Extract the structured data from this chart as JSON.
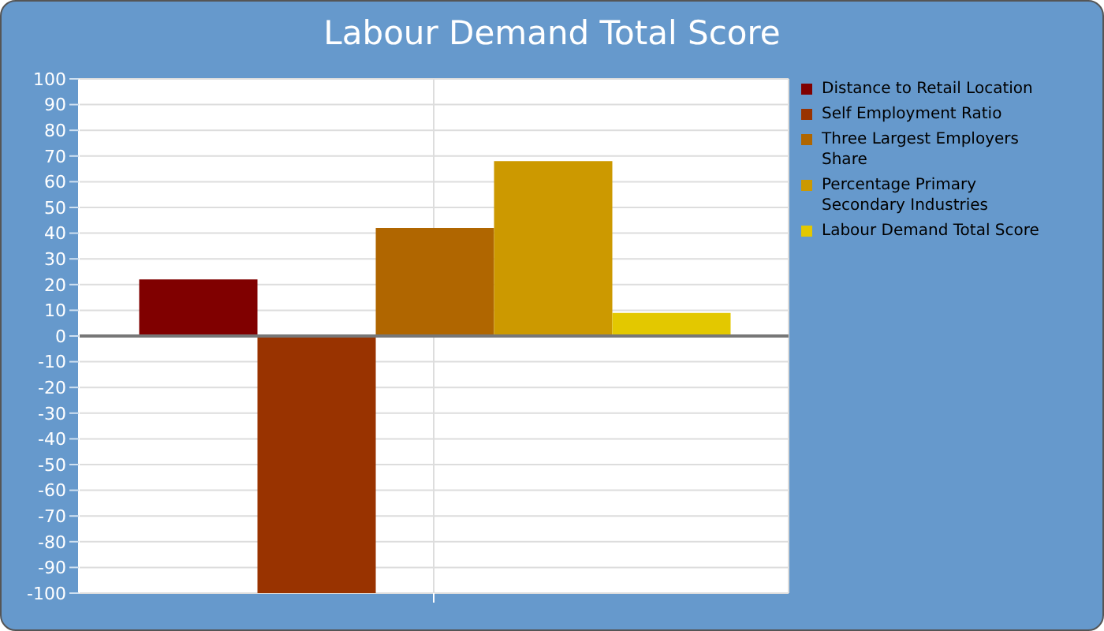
{
  "chart_data": {
    "type": "bar",
    "title": "Labour Demand Total Score",
    "categories": [
      null
    ],
    "series": [
      {
        "name": "Distance to Retail Location",
        "color": "#800000",
        "values": [
          22
        ]
      },
      {
        "name": "Self Employment Ratio",
        "color": "#993300",
        "values": [
          -100
        ]
      },
      {
        "name": "Three Largest Employers Share",
        "color": "#b06600",
        "values": [
          42
        ]
      },
      {
        "name": "Percentage Primary Secondary Industries",
        "color": "#cc9900",
        "values": [
          68
        ]
      },
      {
        "name": "Labour Demand Total Score",
        "color": "#e3c800",
        "values": [
          9
        ]
      }
    ],
    "ylim": [
      -100,
      100
    ],
    "yticks": [
      -100,
      -90,
      -80,
      -70,
      -60,
      -50,
      -40,
      -30,
      -20,
      -10,
      0,
      10,
      20,
      30,
      40,
      50,
      60,
      70,
      80,
      90,
      100
    ],
    "grid": true,
    "legend": "right"
  }
}
